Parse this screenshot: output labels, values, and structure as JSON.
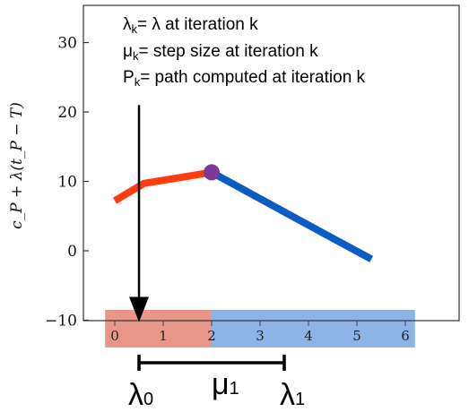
{
  "chart_data": {
    "type": "line",
    "ylabel": "c_P + λ(t_P − T)",
    "yticks": [
      -10,
      0,
      10,
      20,
      30
    ],
    "ytick_labels": [
      "−10",
      "0",
      "10",
      "20",
      "30"
    ],
    "ylim": [
      -10,
      35
    ],
    "xlim": [
      0,
      6
    ],
    "xticks": [
      0,
      1,
      2,
      3,
      4,
      5,
      6
    ],
    "xtick_labels": [
      "0",
      "1",
      "2",
      "3",
      "4",
      "5",
      "6"
    ],
    "grid": false,
    "series": [
      {
        "color": "#ff3b10",
        "x": [
          0,
          0.6,
          2
        ],
        "y": [
          7.2,
          9.7,
          11.3
        ]
      },
      {
        "color": "#0a5bc2",
        "x": [
          2,
          4.5,
          5.3
        ],
        "y": [
          11.3,
          1.8,
          -1.2
        ]
      }
    ],
    "marker": {
      "x": 2,
      "y": 11.3,
      "color": "#7b3a96"
    },
    "regions": [
      {
        "x": [
          -0.2,
          2
        ],
        "color": "#e8958a"
      },
      {
        "x": [
          2,
          6.2
        ],
        "color": "#8db4e6"
      }
    ],
    "arrow": {
      "x": 0.5,
      "y_from": 21,
      "y_to": -10
    },
    "interval": {
      "x_from": 0.5,
      "x_to": 3.5
    },
    "annotations": {
      "legend": [
        {
          "main": "λ",
          "sub": "k",
          "rest": "= λ at iteration k"
        },
        {
          "main": "μ",
          "sub": "k",
          "rest": "= step size at iteration k"
        },
        {
          "main": "P",
          "sub": "k",
          "rest": "= path computed at iteration k"
        }
      ],
      "lambda0": {
        "main": "λ",
        "sub": "0"
      },
      "mu1": {
        "main": "μ",
        "sub": "1"
      },
      "lambda1": {
        "main": "λ",
        "sub": "1"
      }
    }
  }
}
